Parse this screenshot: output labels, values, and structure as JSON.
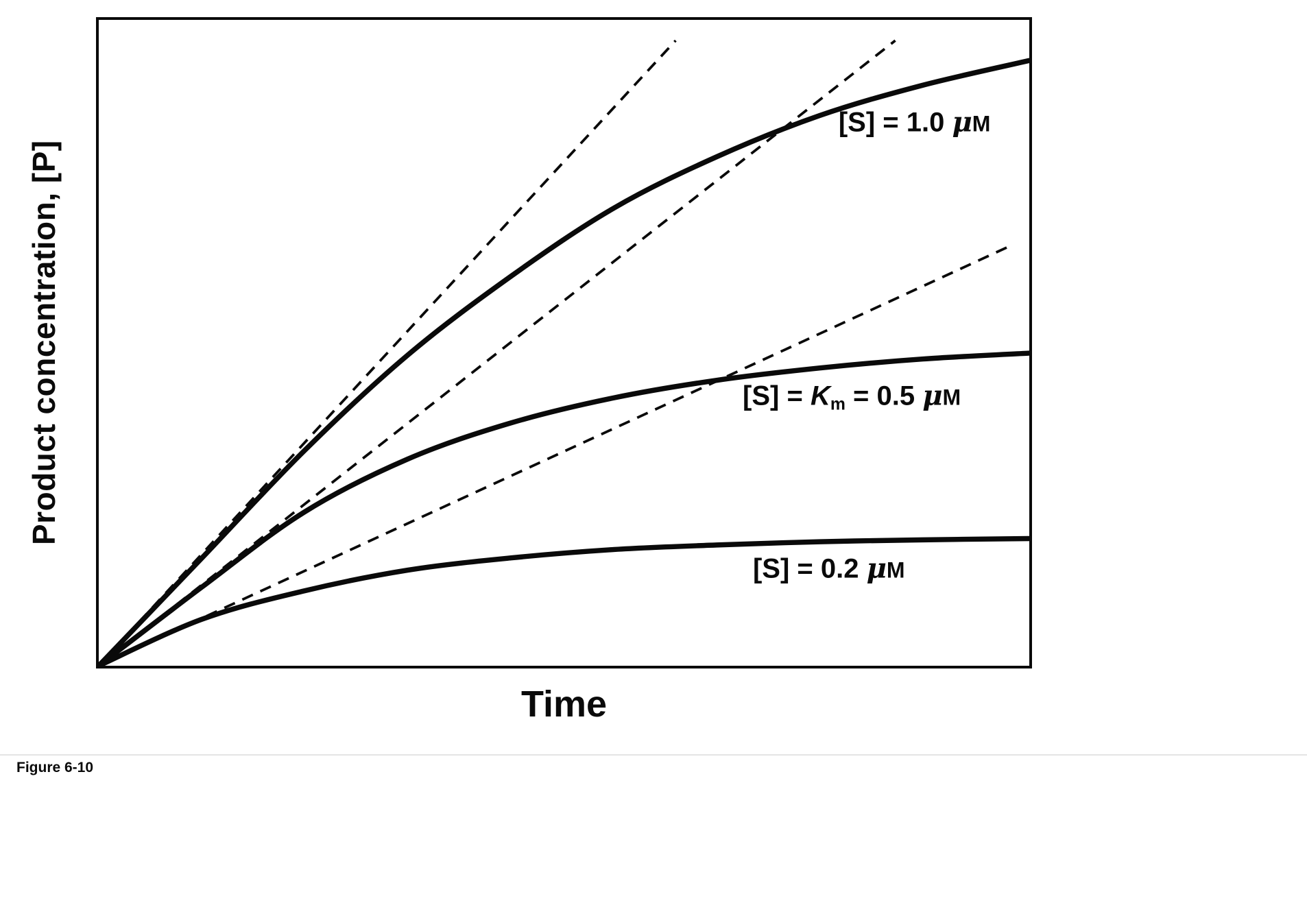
{
  "page": {
    "background": "#ffffff"
  },
  "figure": {
    "caption": "Figure 6-10"
  },
  "chart_data": {
    "type": "line",
    "title": "",
    "xlabel": "Time",
    "ylabel": "Product concentration, [P]",
    "x_units": "arbitrary (no tick labels shown)",
    "y_units": "arbitrary (no tick labels shown)",
    "axis_ticks": false,
    "grid": false,
    "legend_position": "inline-annotations",
    "ink_color": "#0a0a0a",
    "x_range": [
      0,
      1
    ],
    "y_range": [
      0,
      1
    ],
    "series": [
      {
        "name": "[S] = 1.0 uM",
        "kind": "enzyme progress curve (solid)",
        "points": [
          [
            0,
            0
          ],
          [
            0.111,
            0.167
          ],
          [
            0.221,
            0.333
          ],
          [
            0.332,
            0.481
          ],
          [
            0.443,
            0.603
          ],
          [
            0.554,
            0.709
          ],
          [
            0.664,
            0.788
          ],
          [
            0.775,
            0.852
          ],
          [
            0.886,
            0.899
          ],
          [
            1,
            0.937
          ]
        ]
      },
      {
        "name": "[S] = Km = 0.5 uM",
        "kind": "enzyme progress curve (solid)",
        "points": [
          [
            0,
            0
          ],
          [
            0.111,
            0.122
          ],
          [
            0.221,
            0.238
          ],
          [
            0.332,
            0.32
          ],
          [
            0.443,
            0.376
          ],
          [
            0.554,
            0.415
          ],
          [
            0.664,
            0.442
          ],
          [
            0.775,
            0.461
          ],
          [
            0.886,
            0.475
          ],
          [
            1,
            0.484
          ]
        ]
      },
      {
        "name": "[S] = 0.2 uM",
        "kind": "enzyme progress curve (solid)",
        "points": [
          [
            0,
            0
          ],
          [
            0.111,
            0.072
          ],
          [
            0.221,
            0.116
          ],
          [
            0.332,
            0.148
          ],
          [
            0.443,
            0.167
          ],
          [
            0.554,
            0.18
          ],
          [
            0.664,
            0.187
          ],
          [
            0.775,
            0.192
          ],
          [
            0.886,
            0.195
          ],
          [
            1,
            0.197
          ]
        ]
      }
    ],
    "initial_velocity_tangents": [
      {
        "for": "[S] = 1.0 uM",
        "style": "dashed",
        "from": [
          0,
          0
        ],
        "to": [
          0.62,
          0.968
        ]
      },
      {
        "for": "[S] = Km = 0.5 uM",
        "style": "dashed",
        "from": [
          0,
          0
        ],
        "to": [
          0.856,
          0.968
        ]
      },
      {
        "for": "[S] = 0.2 uM",
        "style": "dashed",
        "from": [
          0,
          0
        ],
        "to": [
          0.981,
          0.651
        ]
      }
    ],
    "labels": [
      {
        "name": "curve-label-s-1-0-um",
        "x": 0.795,
        "y": 0.158,
        "parts": [
          {
            "t": "[S] = 1.0 ",
            "s": "b"
          },
          {
            "t": "μ",
            "s": "mu"
          },
          {
            "t": "M",
            "s": "u"
          }
        ]
      },
      {
        "name": "curve-label-s-km-0-5-um",
        "x": 0.692,
        "y": 0.584,
        "parts": [
          {
            "t": "[S] = ",
            "s": "b"
          },
          {
            "t": "K",
            "s": "i"
          },
          {
            "t": "m",
            "s": "sub"
          },
          {
            "t": " = 0.5 ",
            "s": "b"
          },
          {
            "t": "μ",
            "s": "mu"
          },
          {
            "t": "M",
            "s": "u"
          }
        ]
      },
      {
        "name": "curve-label-s-0-2-um",
        "x": 0.703,
        "y": 0.849,
        "parts": [
          {
            "t": "[S] = 0.2 ",
            "s": "b"
          },
          {
            "t": "μ",
            "s": "mu"
          },
          {
            "t": "M",
            "s": "u"
          }
        ]
      }
    ]
  }
}
